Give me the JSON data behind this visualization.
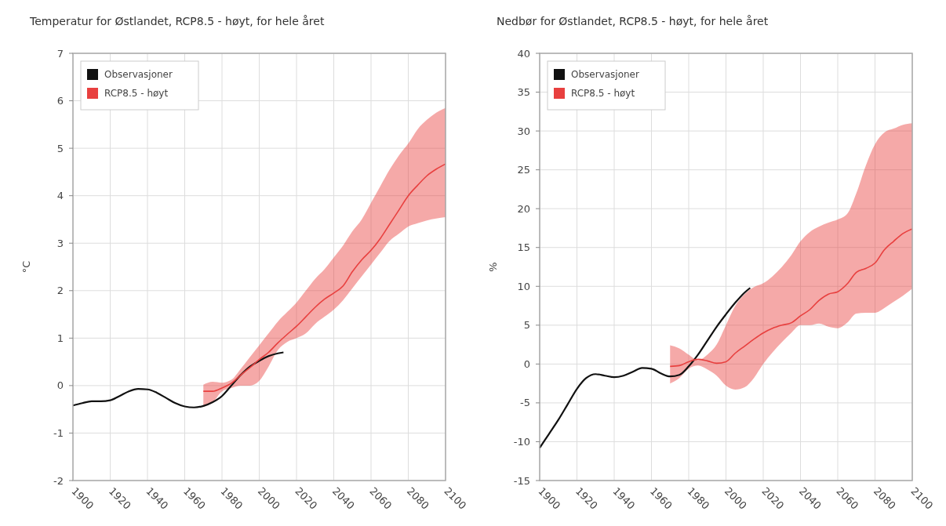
{
  "chart_data": [
    {
      "type": "line",
      "title": "Temperatur for Østlandet, RCP8.5 - høyt, for hele året",
      "ylabel": "°C",
      "xlim": [
        1900,
        2100
      ],
      "xticks": [
        1900,
        1920,
        1940,
        1960,
        1980,
        2000,
        2020,
        2040,
        2060,
        2080,
        2100
      ],
      "ylim": [
        -2,
        7
      ],
      "yticks": [
        -2,
        -1,
        0,
        1,
        2,
        3,
        4,
        5,
        6,
        7
      ],
      "grid": true,
      "legend": "top left",
      "series": [
        {
          "name": "Observasjoner",
          "color": "#111111",
          "x": [
            1900,
            1905,
            1910,
            1915,
            1920,
            1925,
            1930,
            1935,
            1940,
            1945,
            1950,
            1955,
            1960,
            1965,
            1970,
            1975,
            1980,
            1985,
            1990,
            1995,
            2000,
            2005,
            2010,
            2013
          ],
          "values": [
            -0.42,
            -0.37,
            -0.33,
            -0.33,
            -0.31,
            -0.22,
            -0.12,
            -0.07,
            -0.08,
            -0.15,
            -0.26,
            -0.37,
            -0.44,
            -0.46,
            -0.43,
            -0.35,
            -0.22,
            0.0,
            0.22,
            0.4,
            0.52,
            0.62,
            0.68,
            0.7
          ]
        },
        {
          "name": "RCP8.5 - høyt",
          "color": "#e8403f",
          "x": [
            1970,
            1975,
            1980,
            1985,
            1990,
            1995,
            2000,
            2005,
            2010,
            2015,
            2020,
            2025,
            2030,
            2035,
            2040,
            2045,
            2050,
            2055,
            2060,
            2065,
            2070,
            2075,
            2080,
            2085,
            2090,
            2095,
            2100
          ],
          "values": [
            -0.12,
            -0.12,
            -0.05,
            0.05,
            0.22,
            0.38,
            0.55,
            0.7,
            0.9,
            1.08,
            1.25,
            1.45,
            1.65,
            1.82,
            1.95,
            2.1,
            2.4,
            2.65,
            2.85,
            3.1,
            3.4,
            3.7,
            4.0,
            4.22,
            4.42,
            4.56,
            4.67
          ],
          "upper": [
            0.02,
            0.08,
            0.06,
            0.12,
            0.35,
            0.6,
            0.85,
            1.1,
            1.35,
            1.55,
            1.75,
            2.0,
            2.25,
            2.45,
            2.7,
            2.95,
            3.25,
            3.5,
            3.85,
            4.2,
            4.55,
            4.85,
            5.1,
            5.4,
            5.6,
            5.75,
            5.85
          ],
          "lower": [
            -0.45,
            -0.35,
            -0.12,
            -0.05,
            0.0,
            0.0,
            0.1,
            0.4,
            0.75,
            0.92,
            1.0,
            1.1,
            1.3,
            1.45,
            1.6,
            1.8,
            2.05,
            2.3,
            2.55,
            2.8,
            3.05,
            3.2,
            3.35,
            3.42,
            3.48,
            3.52,
            3.55
          ]
        }
      ]
    },
    {
      "type": "line",
      "title": "Nedbør for Østlandet, RCP8.5 - høyt, for hele året",
      "ylabel": "%",
      "xlim": [
        1900,
        2100
      ],
      "xticks": [
        1900,
        1920,
        1940,
        1960,
        1980,
        2000,
        2020,
        2040,
        2060,
        2080,
        2100
      ],
      "ylim": [
        -15,
        40
      ],
      "yticks": [
        -15,
        -10,
        -5,
        0,
        5,
        10,
        15,
        20,
        25,
        30,
        35,
        40
      ],
      "grid": true,
      "legend": "top left",
      "series": [
        {
          "name": "Observasjoner",
          "color": "#111111",
          "x": [
            1900,
            1905,
            1910,
            1915,
            1920,
            1925,
            1930,
            1935,
            1940,
            1945,
            1950,
            1955,
            1960,
            1965,
            1970,
            1975,
            1980,
            1985,
            1990,
            1995,
            2000,
            2005,
            2010,
            2013
          ],
          "values": [
            -10.8,
            -9.0,
            -7.2,
            -5.2,
            -3.2,
            -1.8,
            -1.3,
            -1.5,
            -1.7,
            -1.5,
            -1.0,
            -0.5,
            -0.6,
            -1.2,
            -1.6,
            -1.4,
            -0.3,
            1.2,
            3.0,
            4.8,
            6.4,
            7.9,
            9.2,
            9.8
          ]
        },
        {
          "name": "RCP8.5 - høyt",
          "color": "#e8403f",
          "x": [
            1970,
            1975,
            1980,
            1985,
            1990,
            1995,
            2000,
            2005,
            2010,
            2015,
            2020,
            2025,
            2030,
            2035,
            2040,
            2045,
            2050,
            2055,
            2060,
            2065,
            2070,
            2075,
            2080,
            2085,
            2090,
            2095,
            2100
          ],
          "values": [
            -0.3,
            -0.2,
            0.3,
            0.6,
            0.4,
            0.1,
            0.3,
            1.4,
            2.3,
            3.2,
            4.0,
            4.6,
            5.0,
            5.3,
            6.2,
            7.0,
            8.2,
            9.0,
            9.3,
            10.3,
            11.8,
            12.3,
            13.0,
            14.7,
            15.8,
            16.8,
            17.4
          ],
          "upper": [
            2.4,
            2.0,
            1.2,
            0.5,
            1.2,
            2.5,
            5.0,
            7.5,
            9.0,
            9.9,
            10.4,
            11.3,
            12.5,
            14.0,
            15.8,
            17.0,
            17.7,
            18.2,
            18.6,
            19.3,
            22.0,
            25.5,
            28.3,
            29.8,
            30.3,
            30.8,
            31.0
          ],
          "lower": [
            -2.5,
            -1.8,
            -0.6,
            -0.2,
            -0.7,
            -1.5,
            -2.8,
            -3.3,
            -3.0,
            -1.8,
            0.0,
            1.5,
            2.8,
            4.0,
            5.0,
            5.0,
            5.2,
            4.8,
            4.6,
            5.3,
            6.5,
            6.6,
            6.6,
            7.2,
            8.0,
            8.8,
            9.7
          ]
        }
      ]
    }
  ]
}
